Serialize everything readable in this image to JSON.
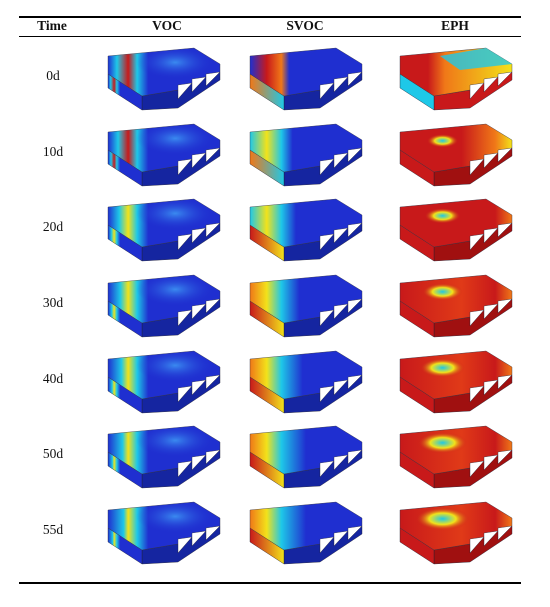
{
  "table": {
    "headers": [
      "Time",
      "VOC",
      "SVOC",
      "EPH"
    ],
    "rows": [
      {
        "time": "0d"
      },
      {
        "time": "10d"
      },
      {
        "time": "20d"
      },
      {
        "time": "30d"
      },
      {
        "time": "40d"
      },
      {
        "time": "50d"
      },
      {
        "time": "55d"
      }
    ]
  },
  "colors": {
    "low": "#1f2fd0",
    "mid_low": "#1ec8e8",
    "mid": "#f2e21a",
    "mid_high": "#f07818",
    "high": "#c8191a",
    "rule": "#000000"
  }
}
